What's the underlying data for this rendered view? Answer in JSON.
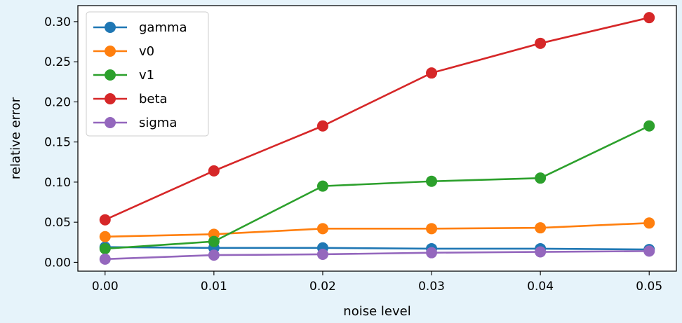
{
  "chart_data": {
    "type": "line",
    "title": "",
    "xlabel": "noise level",
    "ylabel": "relative error",
    "x": [
      0.0,
      0.01,
      0.02,
      0.03,
      0.04,
      0.05
    ],
    "x_tick_labels": [
      "0.00",
      "0.01",
      "0.02",
      "0.03",
      "0.04",
      "0.05"
    ],
    "y_ticks": [
      0.0,
      0.05,
      0.1,
      0.15,
      0.2,
      0.25,
      0.3
    ],
    "y_tick_labels": [
      "0.00",
      "0.05",
      "0.10",
      "0.15",
      "0.20",
      "0.25",
      "0.30"
    ],
    "xlim": [
      -0.0025,
      0.0525
    ],
    "ylim": [
      -0.011,
      0.32
    ],
    "grid": false,
    "legend_position": "top-left",
    "series": [
      {
        "name": "gamma",
        "color": "#1f77b4",
        "values": [
          0.019,
          0.018,
          0.018,
          0.017,
          0.017,
          0.016
        ]
      },
      {
        "name": "v0",
        "color": "#ff7f0e",
        "values": [
          0.032,
          0.035,
          0.042,
          0.042,
          0.043,
          0.049
        ]
      },
      {
        "name": "v1",
        "color": "#2ca02c",
        "values": [
          0.017,
          0.026,
          0.095,
          0.101,
          0.105,
          0.17
        ]
      },
      {
        "name": "beta",
        "color": "#d62728",
        "values": [
          0.053,
          0.114,
          0.17,
          0.236,
          0.273,
          0.305
        ]
      },
      {
        "name": "sigma",
        "color": "#9467bd",
        "values": [
          0.004,
          0.009,
          0.01,
          0.012,
          0.013,
          0.014
        ]
      }
    ]
  }
}
